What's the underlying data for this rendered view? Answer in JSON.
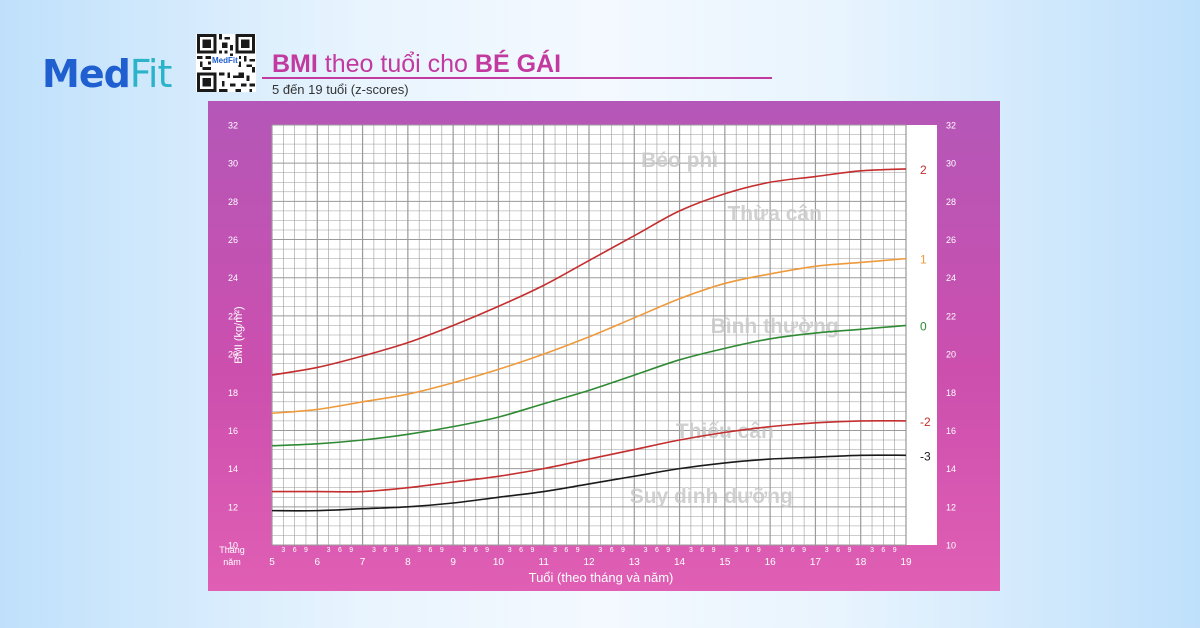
{
  "brand": {
    "part1": "Med",
    "part2": "Fit",
    "qr_label": "MedFit"
  },
  "header": {
    "title_part1": "BMI",
    "title_part2": " theo tuổi cho ",
    "title_part3": "BÉ GÁI",
    "subtitle": "5 đến 19 tuổi (z-scores)"
  },
  "chart_data": {
    "type": "line",
    "ylabel": "BMI (kg/m²)",
    "xlabel": "Tuổi (theo tháng và năm)",
    "x_axis_left_label_1": "Tháng",
    "x_axis_left_label_2": "năm",
    "xlim": [
      5,
      19
    ],
    "ylim": [
      10,
      32
    ],
    "y_ticks": [
      10,
      12,
      14,
      16,
      18,
      20,
      22,
      24,
      26,
      28,
      30,
      32
    ],
    "x_ticks": [
      5,
      6,
      7,
      8,
      9,
      10,
      11,
      12,
      13,
      14,
      15,
      16,
      17,
      18,
      19
    ],
    "month_labels": [
      "3",
      "6",
      "9"
    ],
    "grid": true,
    "background_color": "#ffffff",
    "grid_color": "#9a9a9a",
    "x": [
      5,
      6,
      7,
      8,
      9,
      10,
      11,
      12,
      13,
      14,
      15,
      16,
      17,
      18,
      19
    ],
    "series": [
      {
        "name": "2",
        "color": "#c42e2e",
        "values": [
          18.9,
          19.3,
          19.9,
          20.6,
          21.5,
          22.5,
          23.6,
          24.9,
          26.2,
          27.5,
          28.4,
          29.0,
          29.3,
          29.6,
          29.7
        ]
      },
      {
        "name": "1",
        "color": "#ee9a3c",
        "values": [
          16.9,
          17.1,
          17.5,
          17.9,
          18.5,
          19.2,
          20.0,
          20.9,
          21.9,
          22.9,
          23.7,
          24.2,
          24.6,
          24.8,
          25.0
        ]
      },
      {
        "name": "0",
        "color": "#2f8a34",
        "values": [
          15.2,
          15.3,
          15.5,
          15.8,
          16.2,
          16.7,
          17.4,
          18.1,
          18.9,
          19.7,
          20.3,
          20.8,
          21.1,
          21.3,
          21.5
        ]
      },
      {
        "name": "-2",
        "color": "#c42e2e",
        "values": [
          12.8,
          12.8,
          12.8,
          13.0,
          13.3,
          13.6,
          14.0,
          14.5,
          15.0,
          15.5,
          15.9,
          16.2,
          16.4,
          16.5,
          16.5
        ]
      },
      {
        "name": "-3",
        "color": "#1a1a1a",
        "values": [
          11.8,
          11.8,
          11.9,
          12.0,
          12.2,
          12.5,
          12.8,
          13.2,
          13.6,
          14.0,
          14.3,
          14.5,
          14.6,
          14.7,
          14.7
        ]
      }
    ],
    "zones": [
      {
        "label": "Béo phì",
        "x": 14.0,
        "y": 29.8
      },
      {
        "label": "Thừa cân",
        "x": 16.1,
        "y": 27.0
      },
      {
        "label": "Bình thường",
        "x": 16.1,
        "y": 21.1
      },
      {
        "label": "Thiếu cân",
        "x": 15.0,
        "y": 15.6
      },
      {
        "label": "Suy dinh dưỡng",
        "x": 14.7,
        "y": 12.2
      }
    ]
  }
}
